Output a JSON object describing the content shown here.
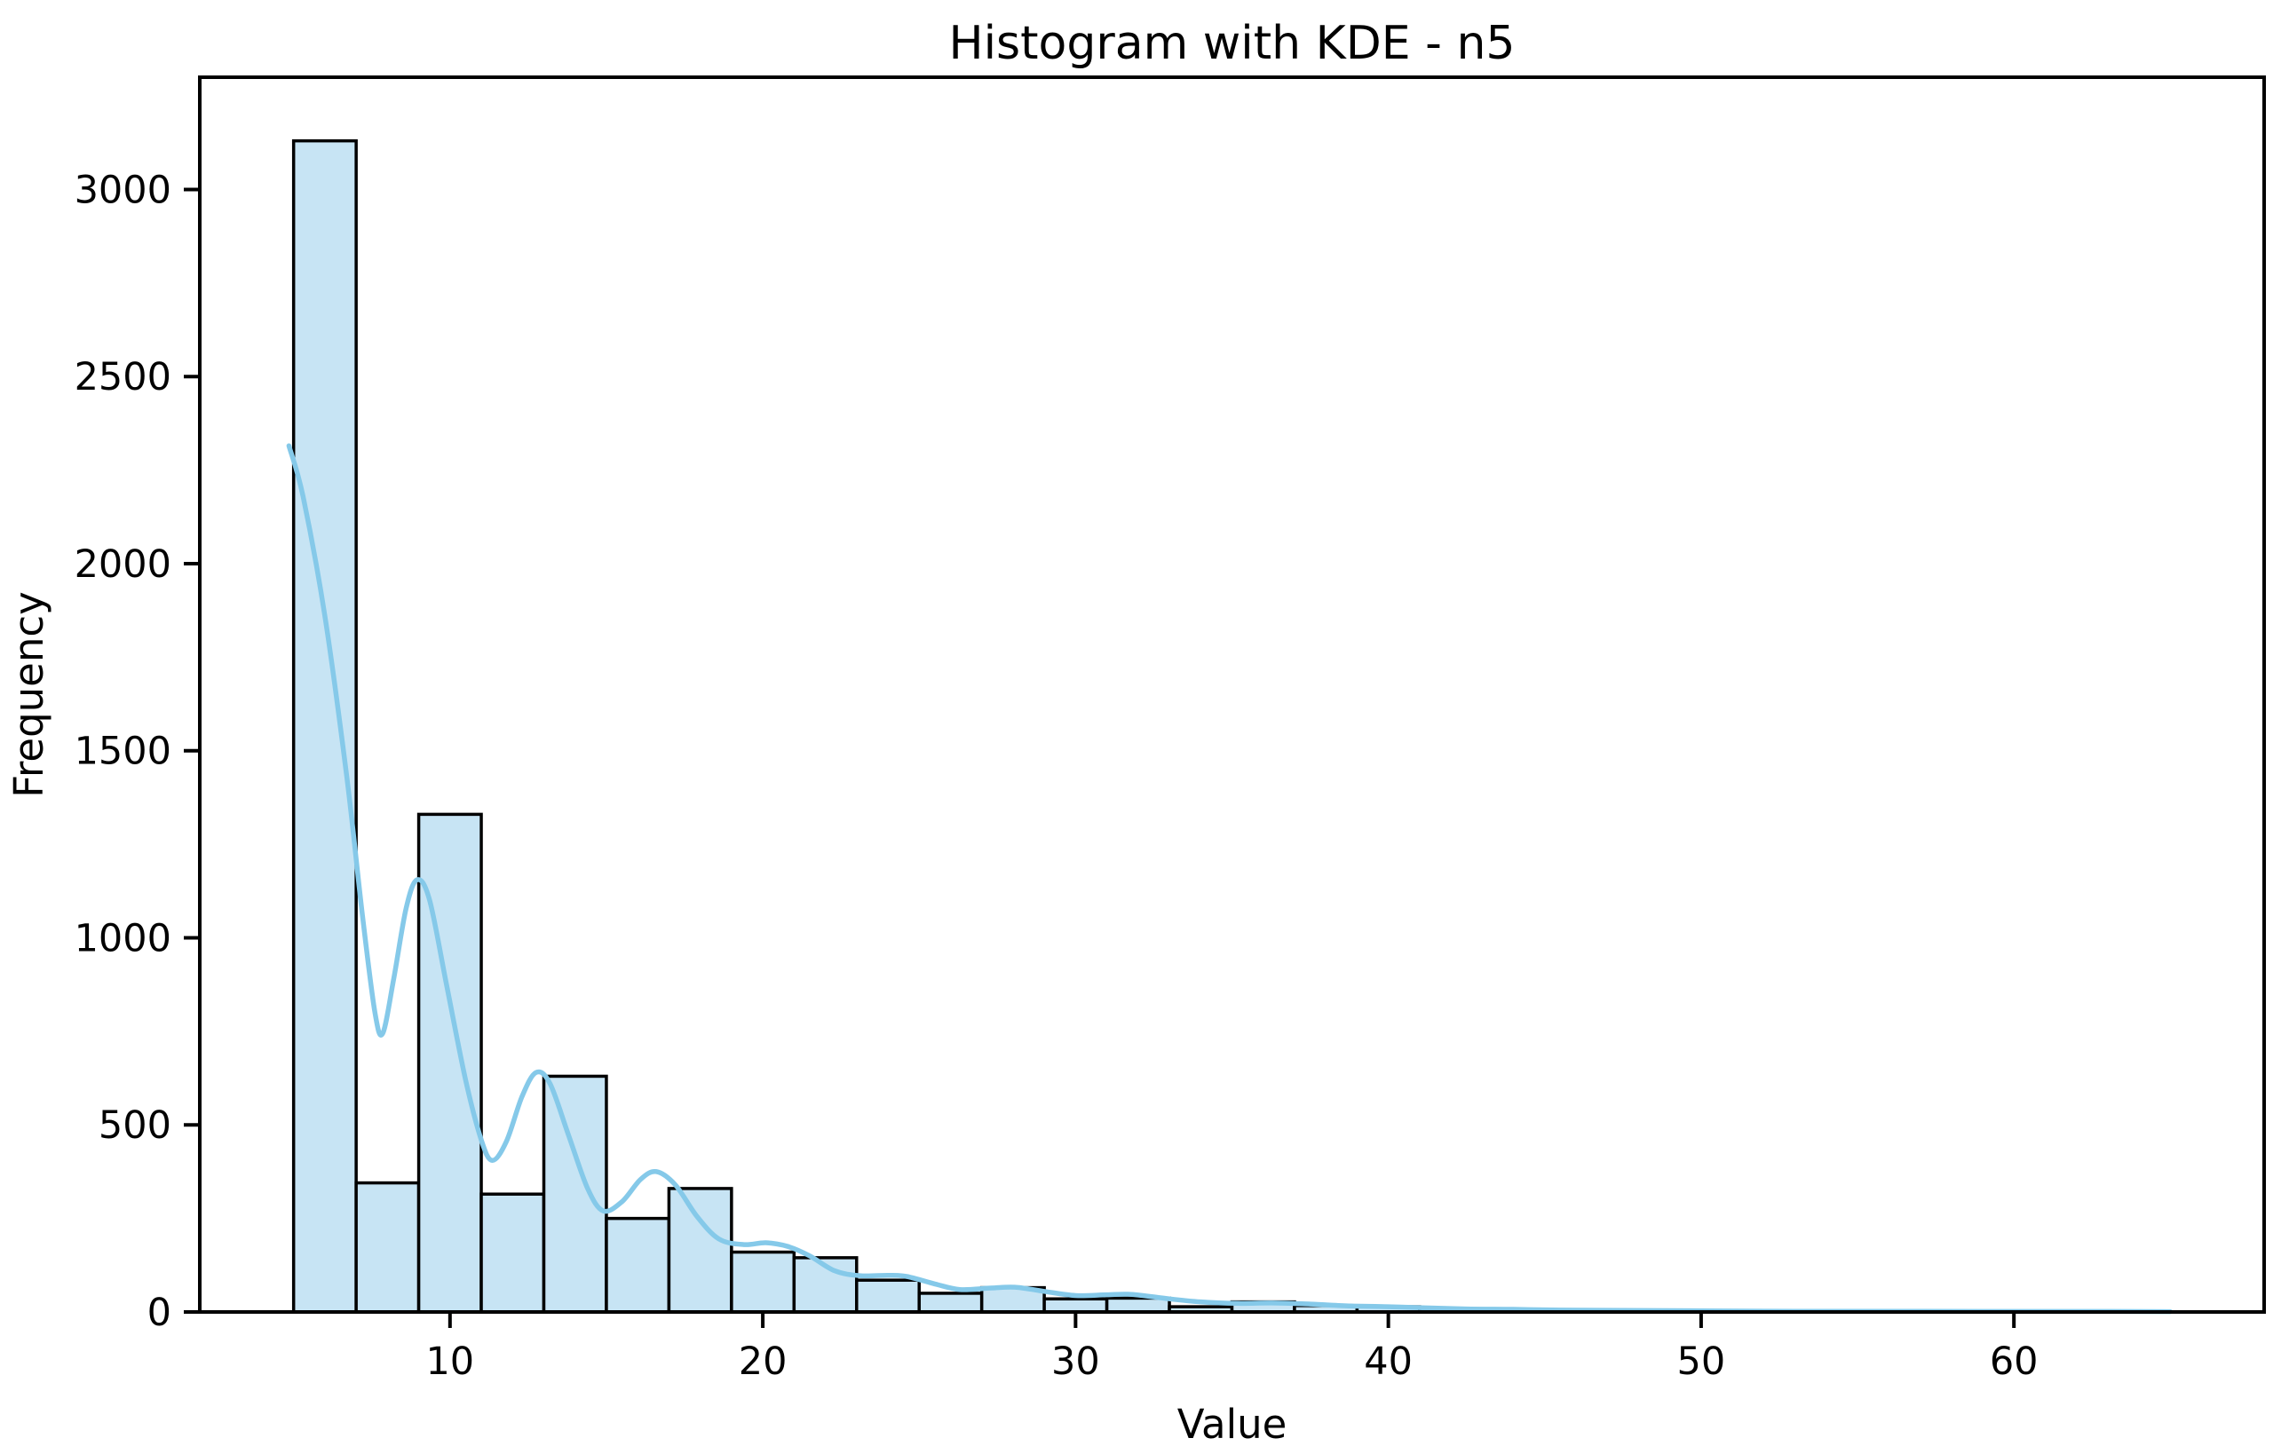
{
  "figure": {
    "title": "Histogram with KDE - n5",
    "xlabel": "Value",
    "ylabel": "Frequency"
  },
  "chart_data": {
    "type": "bar",
    "subtype": "histogram_with_kde",
    "title": "Histogram with KDE - n5",
    "xlabel": "Value",
    "ylabel": "Frequency",
    "xlim": [
      2,
      68
    ],
    "ylim": [
      0,
      3300
    ],
    "xticks": [
      10,
      20,
      30,
      40,
      50,
      60
    ],
    "yticks": [
      0,
      500,
      1000,
      1500,
      2000,
      2500,
      3000
    ],
    "grid": false,
    "legend": false,
    "bin_width": 2,
    "bin_edges": [
      5,
      7,
      9,
      11,
      13,
      15,
      17,
      19,
      21,
      23,
      25,
      27,
      29,
      31,
      33,
      35,
      37,
      39,
      41,
      43,
      45,
      47,
      49,
      51,
      53,
      55,
      57,
      59,
      61,
      63,
      65
    ],
    "bar_heights": [
      3130,
      345,
      1330,
      315,
      630,
      250,
      330,
      160,
      145,
      85,
      50,
      65,
      35,
      37,
      14,
      27,
      17,
      14,
      6,
      4,
      3,
      2,
      2,
      1,
      1,
      1,
      1,
      0,
      1,
      1
    ],
    "kde_points": [
      [
        4.85,
        2315
      ],
      [
        5.3,
        2180
      ],
      [
        6.0,
        1860
      ],
      [
        6.7,
        1430
      ],
      [
        7.2,
        1060
      ],
      [
        7.6,
        800
      ],
      [
        7.85,
        745
      ],
      [
        8.2,
        890
      ],
      [
        8.6,
        1080
      ],
      [
        8.95,
        1155
      ],
      [
        9.35,
        1100
      ],
      [
        9.9,
        870
      ],
      [
        10.5,
        620
      ],
      [
        11.0,
        460
      ],
      [
        11.35,
        405
      ],
      [
        11.8,
        455
      ],
      [
        12.3,
        575
      ],
      [
        12.75,
        640
      ],
      [
        13.2,
        610
      ],
      [
        13.8,
        470
      ],
      [
        14.4,
        330
      ],
      [
        14.9,
        270
      ],
      [
        15.5,
        295
      ],
      [
        16.1,
        355
      ],
      [
        16.6,
        375
      ],
      [
        17.2,
        340
      ],
      [
        17.9,
        255
      ],
      [
        18.6,
        195
      ],
      [
        19.4,
        180
      ],
      [
        20.1,
        185
      ],
      [
        20.8,
        175
      ],
      [
        21.5,
        150
      ],
      [
        22.3,
        110
      ],
      [
        23.1,
        97
      ],
      [
        24.0,
        98
      ],
      [
        24.6,
        95
      ],
      [
        25.5,
        75
      ],
      [
        26.3,
        60
      ],
      [
        27.3,
        64
      ],
      [
        28.1,
        66
      ],
      [
        29.0,
        55
      ],
      [
        30.0,
        44
      ],
      [
        31.0,
        46
      ],
      [
        31.8,
        47
      ],
      [
        33.0,
        35
      ],
      [
        34.0,
        27
      ],
      [
        35.2,
        23
      ],
      [
        36.3,
        24
      ],
      [
        37.5,
        21
      ],
      [
        38.8,
        16
      ],
      [
        40.0,
        14
      ],
      [
        41.2,
        11
      ],
      [
        42.5,
        8
      ],
      [
        44.0,
        7
      ],
      [
        45.5,
        5
      ],
      [
        47.5,
        4
      ],
      [
        50.0,
        3
      ],
      [
        53.0,
        2
      ],
      [
        56.0,
        2
      ],
      [
        59.0,
        1.5
      ],
      [
        62.0,
        1.5
      ],
      [
        65.0,
        1
      ]
    ],
    "colors": {
      "background": "#ffffff",
      "bar_fill": "#c7e4f4",
      "bar_edge": "#000000",
      "kde_line": "#85c9e9",
      "spine": "#000000",
      "text": "#000000"
    }
  }
}
